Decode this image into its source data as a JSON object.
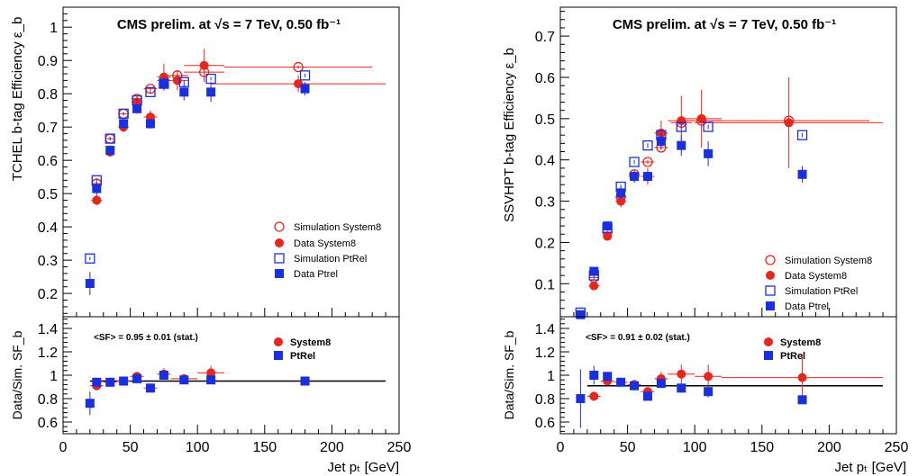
{
  "colors": {
    "sim_system8": "#e8261c",
    "data_system8": "#e8261c",
    "sim_ptrel": "#1a2fe0",
    "data_ptrel": "#1a2fe0",
    "axis": "#000000",
    "reference_line": "#000000"
  },
  "chart_data": [
    {
      "id": "left",
      "type": "scatter",
      "title": "CMS prelim. at √s = 7 TeV, 0.50 fb⁻¹",
      "xlabel": "Jet pₜ [GeV]",
      "xlim": [
        0,
        250
      ],
      "xticks": [
        0,
        50,
        100,
        150,
        200,
        250
      ],
      "top": {
        "ylabel": "TCHEL b-tag Efficiency ε_b",
        "ylim": [
          0.13,
          1.06
        ],
        "yticks": [
          0.2,
          0.3,
          0.4,
          0.5,
          0.6,
          0.7,
          0.8,
          0.9,
          1
        ],
        "yticklabels": [
          "0.2",
          "0.3",
          "0.4",
          "0.5",
          "0.6",
          "0.7",
          "0.8",
          "0.9",
          "1"
        ],
        "legend": {
          "position": "center-right",
          "entries": [
            "Simulation System8",
            "Data System8",
            "Simulation PtRel",
            "Data Ptrel"
          ]
        },
        "series": [
          {
            "name": "Simulation System8",
            "marker": "open-circle",
            "color": "#e8261c",
            "x": [
              25,
              35,
              45,
              55,
              65,
              75,
              85,
              105,
              175
            ],
            "y": [
              0.53,
              0.665,
              0.74,
              0.785,
              0.815,
              0.84,
              0.855,
              0.865,
              0.88
            ],
            "xerr": [
              3,
              3,
              4,
              4,
              5,
              5,
              8,
              15,
              55
            ],
            "yerr": [
              0.005,
              0.005,
              0.005,
              0.005,
              0.005,
              0.005,
              0.005,
              0.005,
              0.005
            ]
          },
          {
            "name": "Data System8",
            "marker": "filled-circle",
            "color": "#e8261c",
            "x": [
              25,
              35,
              45,
              55,
              65,
              75,
              85,
              105,
              175
            ],
            "y": [
              0.48,
              0.625,
              0.7,
              0.775,
              0.73,
              0.85,
              0.84,
              0.885,
              0.83
            ],
            "xerr": [
              4,
              3,
              4,
              4,
              5,
              5,
              8,
              15,
              65
            ],
            "yerr": [
              0.015,
              0.015,
              0.015,
              0.02,
              0.02,
              0.04,
              0.03,
              0.05,
              0.025
            ]
          },
          {
            "name": "Simulation PtRel",
            "marker": "open-square",
            "color": "#1a2fe0",
            "x": [
              20,
              25,
              35,
              45,
              55,
              65,
              75,
              90,
              110,
              180
            ],
            "y": [
              0.305,
              0.54,
              0.665,
              0.74,
              0.78,
              0.805,
              0.83,
              0.835,
              0.845,
              0.855
            ],
            "xerr": [
              0,
              0,
              0,
              0,
              0,
              0,
              0,
              0,
              0,
              0
            ],
            "yerr": [
              0.005,
              0.005,
              0.005,
              0.005,
              0.005,
              0.005,
              0.005,
              0.005,
              0.005,
              0.005
            ]
          },
          {
            "name": "Data Ptrel",
            "marker": "filled-square",
            "color": "#1a2fe0",
            "x": [
              20,
              25,
              35,
              45,
              55,
              65,
              75,
              90,
              110,
              180
            ],
            "y": [
              0.23,
              0.515,
              0.63,
              0.71,
              0.755,
              0.71,
              0.83,
              0.805,
              0.805,
              0.815
            ],
            "xerr": [
              0,
              0,
              0,
              0,
              0,
              0,
              0,
              0,
              0,
              0
            ],
            "yerr": [
              0.035,
              0.02,
              0.015,
              0.015,
              0.015,
              0.015,
              0.02,
              0.025,
              0.03,
              0.02
            ]
          }
        ]
      },
      "bottom": {
        "ylabel": "Data/Sim. SF_b",
        "ylim": [
          0.5,
          1.5
        ],
        "yticks": [
          0.6,
          0.8,
          1,
          1.2,
          1.4
        ],
        "yticklabels": [
          "0.6",
          "0.8",
          "1",
          "1.2",
          "1.4"
        ],
        "annotation": "<SF> = 0.95 ± 0.01 (stat.)",
        "reference_line": 0.95,
        "legend": {
          "position": "top-right",
          "entries": [
            "System8",
            "PtRel"
          ]
        },
        "series": [
          {
            "name": "System8",
            "marker": "filled-circle",
            "color": "#e8261c",
            "x": [
              25,
              35,
              45,
              55,
              65,
              75,
              90,
              110
            ],
            "y": [
              0.91,
              0.94,
              0.95,
              0.99,
              0.89,
              1.01,
              0.97,
              1.02
            ],
            "xerr": [
              5,
              5,
              5,
              5,
              5,
              5,
              10,
              10
            ],
            "yerr": [
              0.02,
              0.02,
              0.02,
              0.02,
              0.02,
              0.05,
              0.04,
              0.06
            ]
          },
          {
            "name": "PtRel",
            "marker": "filled-square",
            "color": "#1a2fe0",
            "x": [
              20,
              25,
              35,
              45,
              55,
              65,
              75,
              90,
              110,
              180
            ],
            "y": [
              0.76,
              0.94,
              0.94,
              0.95,
              0.97,
              0.89,
              1.0,
              0.96,
              0.96,
              0.95
            ],
            "xerr": [
              0,
              0,
              0,
              0,
              0,
              0,
              0,
              0,
              0,
              0
            ],
            "yerr": [
              0.1,
              0.03,
              0.02,
              0.02,
              0.02,
              0.02,
              0.03,
              0.03,
              0.03,
              0.02
            ]
          }
        ]
      }
    },
    {
      "id": "right",
      "type": "scatter",
      "title": "CMS prelim. at √s = 7 TeV, 0.50 fb⁻¹",
      "xlabel": "Jet pₜ [GeV]",
      "xlim": [
        0,
        250
      ],
      "xticks": [
        0,
        50,
        100,
        150,
        200,
        250
      ],
      "top": {
        "ylabel": "SSVHPT b-tag Efficiency ε_b",
        "ylim": [
          0.02,
          0.77
        ],
        "yticks": [
          0.1,
          0.2,
          0.3,
          0.4,
          0.5,
          0.6,
          0.7
        ],
        "yticklabels": [
          "0.1",
          "0.2",
          "0.3",
          "0.4",
          "0.5",
          "0.6",
          "0.7"
        ],
        "legend": {
          "position": "bottom-right",
          "entries": [
            "Simulation System8",
            "Data System8",
            "Simulation PtRel",
            "Data Ptrel"
          ]
        },
        "series": [
          {
            "name": "Simulation System8",
            "marker": "open-circle",
            "color": "#e8261c",
            "x": [
              25,
              35,
              45,
              55,
              65,
              75,
              90,
              105,
              170
            ],
            "y": [
              0.115,
              0.225,
              0.31,
              0.365,
              0.395,
              0.43,
              0.49,
              0.495,
              0.495
            ],
            "xerr": [
              3,
              3,
              4,
              4,
              5,
              5,
              8,
              15,
              60
            ],
            "yerr": [
              0.005,
              0.005,
              0.005,
              0.005,
              0.005,
              0.005,
              0.005,
              0.005,
              0.005
            ]
          },
          {
            "name": "Data System8",
            "marker": "filled-circle",
            "color": "#e8261c",
            "x": [
              25,
              35,
              45,
              55,
              65,
              75,
              90,
              105,
              170
            ],
            "y": [
              0.095,
              0.215,
              0.3,
              0.36,
              0.36,
              0.465,
              0.495,
              0.5,
              0.49
            ],
            "xerr": [
              4,
              3,
              4,
              4,
              5,
              5,
              10,
              15,
              70
            ],
            "yerr": [
              0.01,
              0.01,
              0.015,
              0.015,
              0.02,
              0.03,
              0.06,
              0.07,
              0.11
            ]
          },
          {
            "name": "Simulation PtRel",
            "marker": "open-square",
            "color": "#1a2fe0",
            "x": [
              15,
              25,
              35,
              45,
              55,
              65,
              75,
              90,
              110,
              180
            ],
            "y": [
              0.03,
              0.12,
              0.235,
              0.335,
              0.395,
              0.435,
              0.46,
              0.48,
              0.48,
              0.46
            ],
            "xerr": [
              0,
              0,
              0,
              0,
              0,
              0,
              0,
              0,
              0,
              0
            ],
            "yerr": [
              0.005,
              0.005,
              0.005,
              0.005,
              0.005,
              0.005,
              0.005,
              0.005,
              0.005,
              0.005
            ]
          },
          {
            "name": "Data Ptrel",
            "marker": "filled-square",
            "color": "#1a2fe0",
            "x": [
              15,
              25,
              35,
              45,
              55,
              65,
              75,
              90,
              110,
              180
            ],
            "y": [
              0.025,
              0.13,
              0.24,
              0.32,
              0.36,
              0.36,
              0.445,
              0.435,
              0.415,
              0.365
            ],
            "xerr": [
              0,
              0,
              0,
              0,
              0,
              0,
              0,
              0,
              0,
              0
            ],
            "yerr": [
              0.005,
              0.005,
              0.01,
              0.015,
              0.015,
              0.015,
              0.02,
              0.025,
              0.03,
              0.02
            ]
          }
        ]
      },
      "bottom": {
        "ylabel": "Data/Sim. SF_b",
        "ylim": [
          0.5,
          1.5
        ],
        "yticks": [
          0.6,
          0.8,
          1,
          1.2,
          1.4
        ],
        "yticklabels": [
          "0.6",
          "0.8",
          "1",
          "1.2",
          "1.4"
        ],
        "annotation": "<SF> = 0.91 ± 0.02 (stat.)",
        "reference_line": 0.91,
        "legend": {
          "position": "top-right",
          "entries": [
            "System8",
            "PtRel"
          ]
        },
        "series": [
          {
            "name": "System8",
            "marker": "filled-circle",
            "color": "#e8261c",
            "x": [
              25,
              35,
              45,
              55,
              65,
              75,
              90,
              110,
              180
            ],
            "y": [
              0.82,
              0.95,
              0.94,
              0.92,
              0.86,
              0.97,
              1.01,
              0.99,
              0.98
            ],
            "xerr": [
              5,
              5,
              5,
              5,
              5,
              5,
              10,
              10,
              60
            ],
            "yerr": [
              0.04,
              0.03,
              0.03,
              0.04,
              0.04,
              0.06,
              0.08,
              0.1,
              0.2
            ]
          },
          {
            "name": "PtRel",
            "marker": "filled-square",
            "color": "#1a2fe0",
            "x": [
              15,
              25,
              35,
              45,
              55,
              65,
              75,
              90,
              110,
              180
            ],
            "y": [
              0.8,
              1.0,
              0.99,
              0.94,
              0.91,
              0.82,
              0.93,
              0.89,
              0.86,
              0.79
            ],
            "xerr": [
              0,
              0,
              0,
              0,
              0,
              0,
              0,
              0,
              0,
              0
            ],
            "yerr": [
              0.25,
              0.08,
              0.03,
              0.03,
              0.03,
              0.03,
              0.04,
              0.04,
              0.05,
              0.03
            ]
          }
        ]
      }
    }
  ]
}
